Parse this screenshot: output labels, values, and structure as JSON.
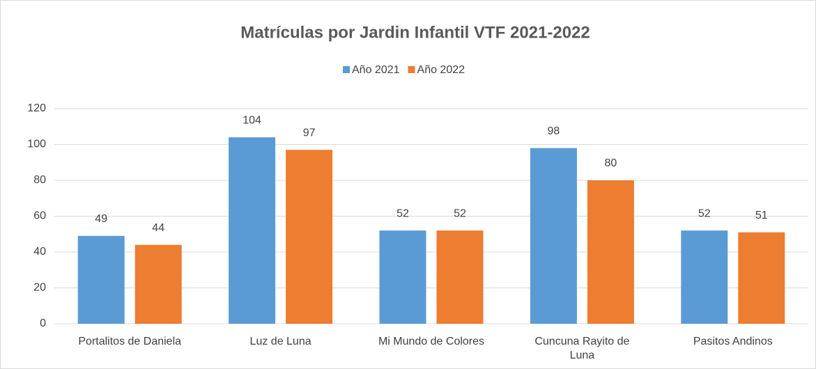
{
  "chart_data": {
    "type": "bar",
    "title": "Matrículas por Jardin Infantil VTF 2021-2022",
    "categories": [
      "Portalitos de Daniela",
      "Luz de Luna",
      "Mi Mundo de Colores",
      "Cuncuna Rayito de Luna",
      "Pasitos Andinos"
    ],
    "series": [
      {
        "name": "Año 2021",
        "color": "#5b9bd5",
        "values": [
          49,
          104,
          52,
          98,
          52
        ]
      },
      {
        "name": "Año 2022",
        "color": "#ed7d31",
        "values": [
          44,
          97,
          52,
          80,
          51
        ]
      }
    ],
    "ylim": [
      0,
      120
    ],
    "yticks": [
      0,
      20,
      40,
      60,
      80,
      100,
      120
    ],
    "grid": true,
    "legend": "top"
  }
}
